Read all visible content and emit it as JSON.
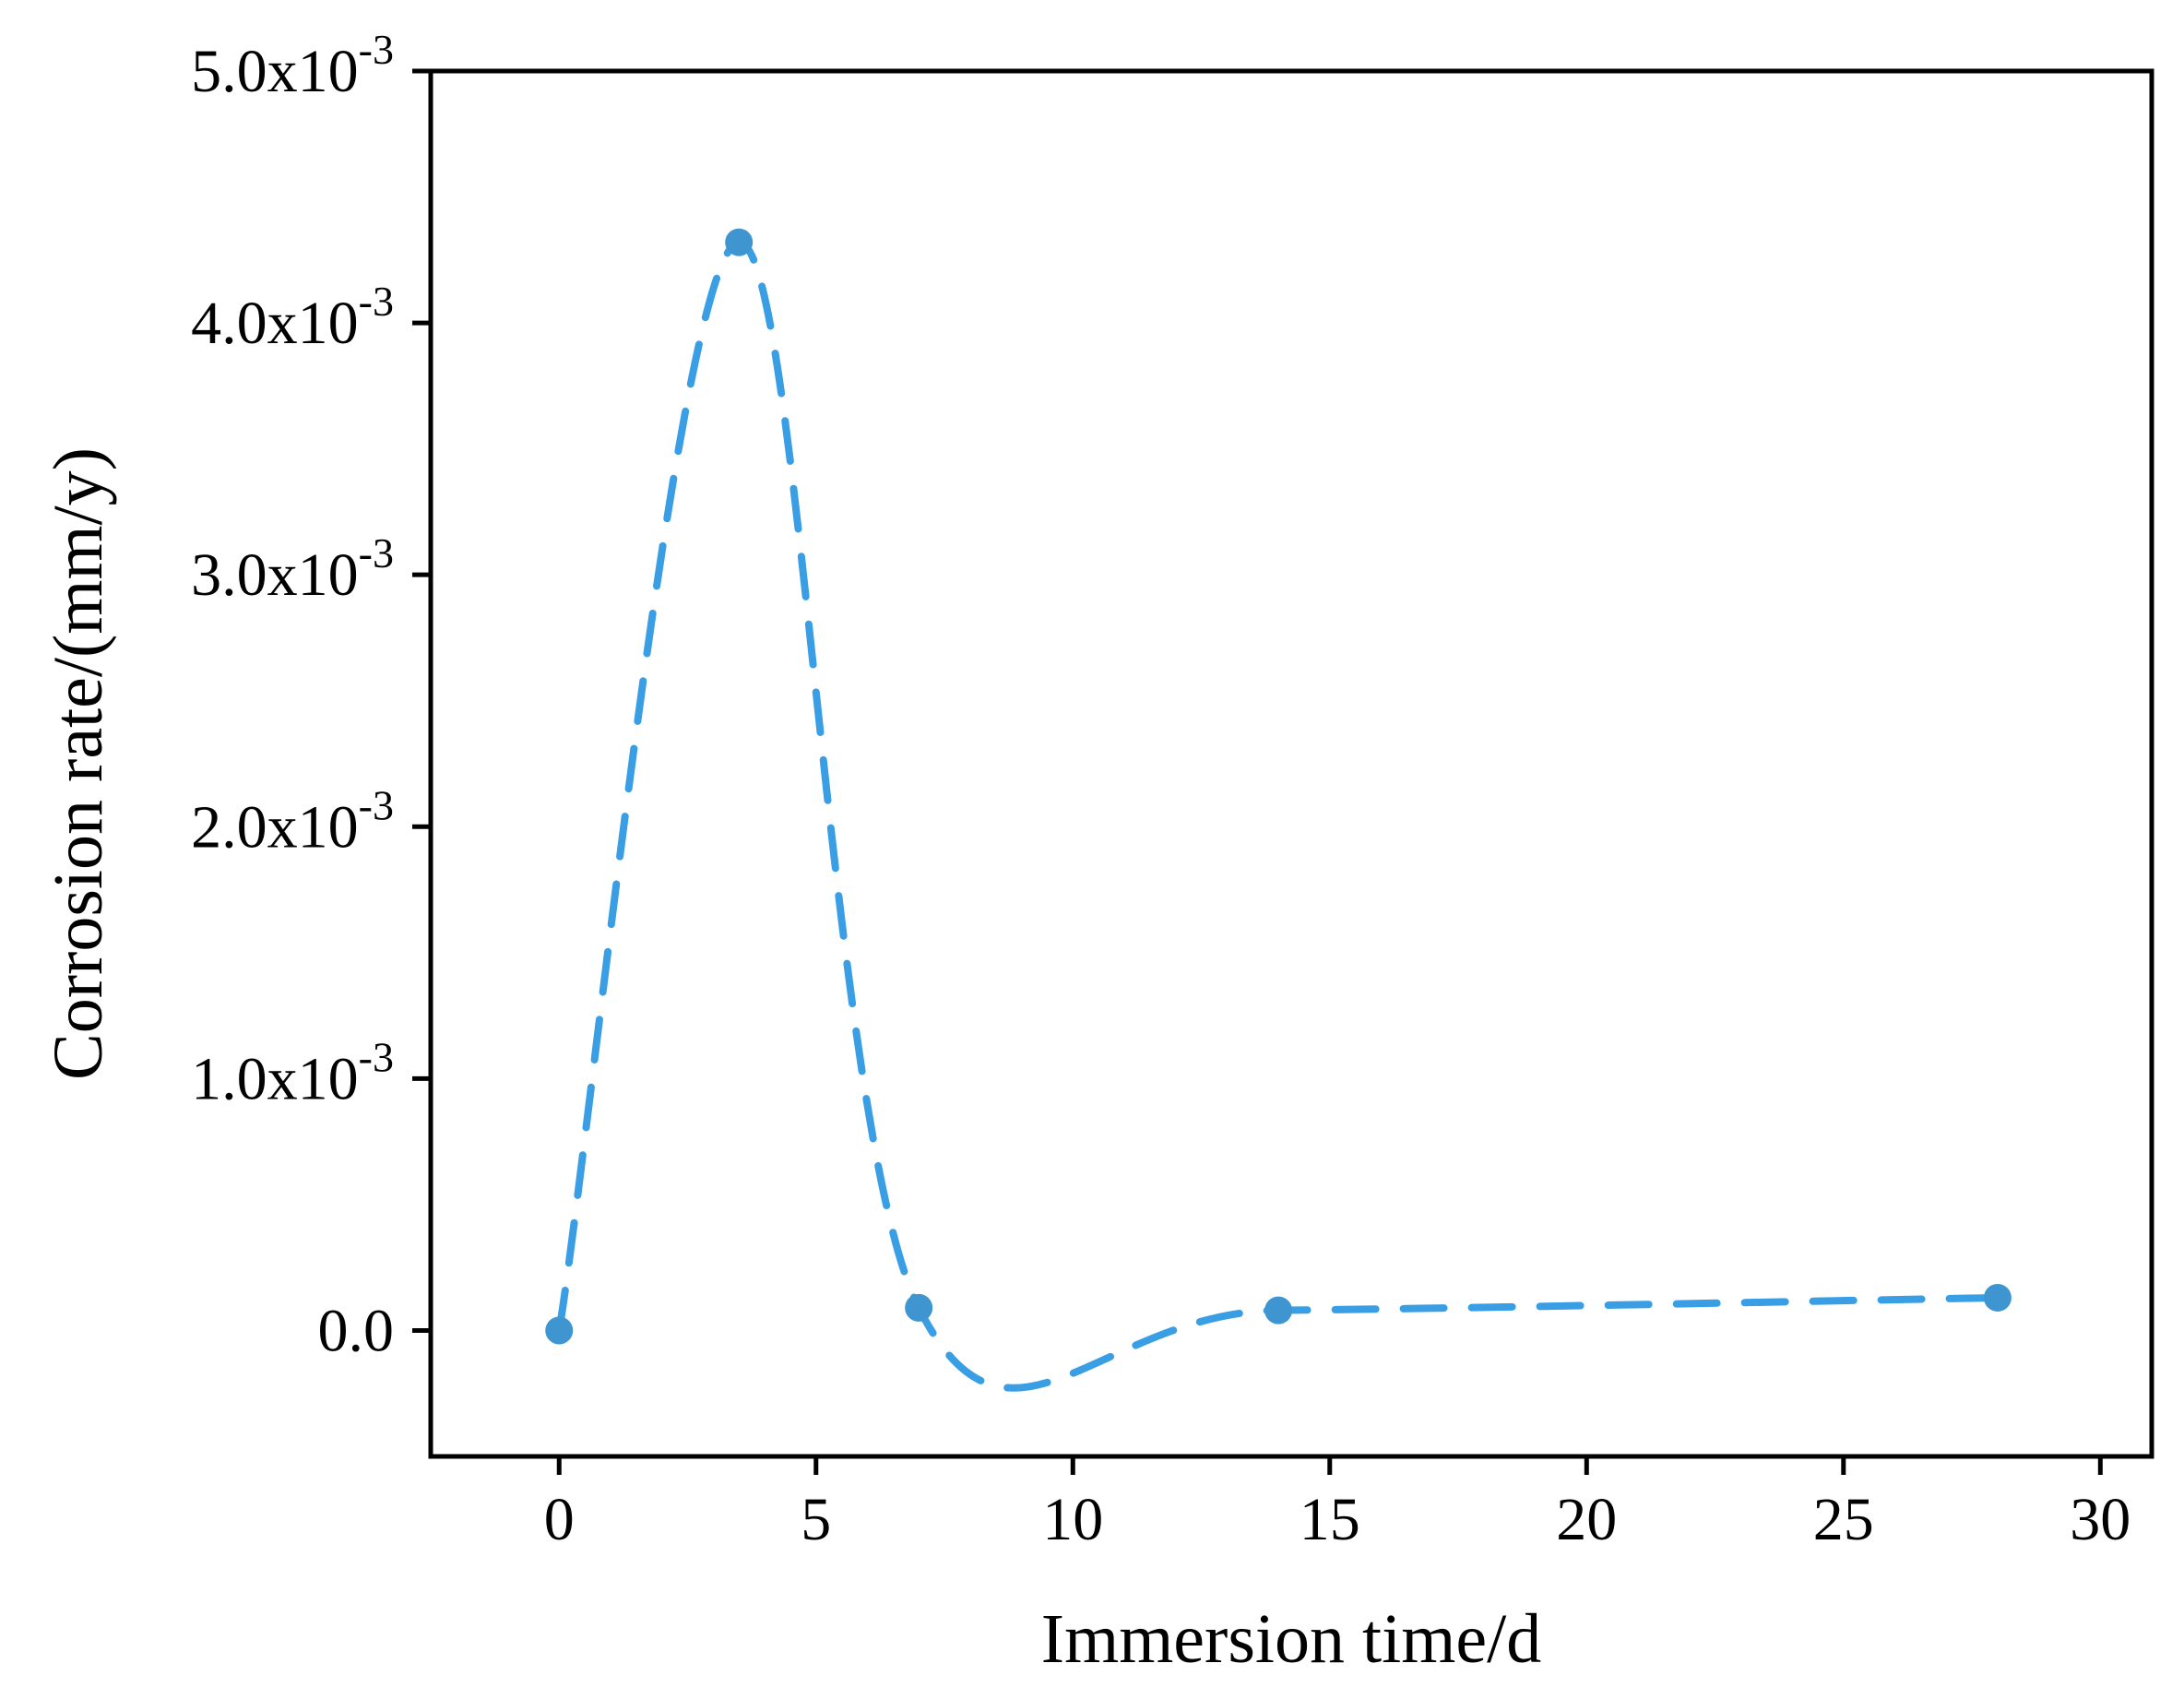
{
  "chart_data": {
    "type": "line",
    "xlabel": "Immersion time/d",
    "ylabel": "Corrosion rate/(mm/y)",
    "xlim": [
      -2.5,
      31.0
    ],
    "ylim": [
      -0.0005,
      0.005
    ],
    "x_ticks": [
      0,
      5,
      10,
      15,
      20,
      25,
      30
    ],
    "x_tick_labels": [
      "0",
      "5",
      "10",
      "15",
      "20",
      "25",
      "30"
    ],
    "y_ticks": [
      0.0,
      0.001,
      0.002,
      0.003,
      0.004,
      0.005
    ],
    "y_tick_labels": [
      {
        "mantissa": "0.0",
        "exp": ""
      },
      {
        "mantissa": "1.0x10",
        "exp": "-3"
      },
      {
        "mantissa": "2.0x10",
        "exp": "-3"
      },
      {
        "mantissa": "3.0x10",
        "exp": "-3"
      },
      {
        "mantissa": "4.0x10",
        "exp": "-3"
      },
      {
        "mantissa": "5.0x10",
        "exp": "-3"
      }
    ],
    "grid": false,
    "series": [
      {
        "line_style": "dashed smooth spline",
        "line_color": "#3a9ee4",
        "marker_color": "#3f95d0",
        "x": [
          0,
          3.5,
          7,
          14,
          28
        ],
        "y": [
          0.0,
          0.00432,
          9e-05,
          8e-05,
          0.00013
        ]
      }
    ]
  }
}
